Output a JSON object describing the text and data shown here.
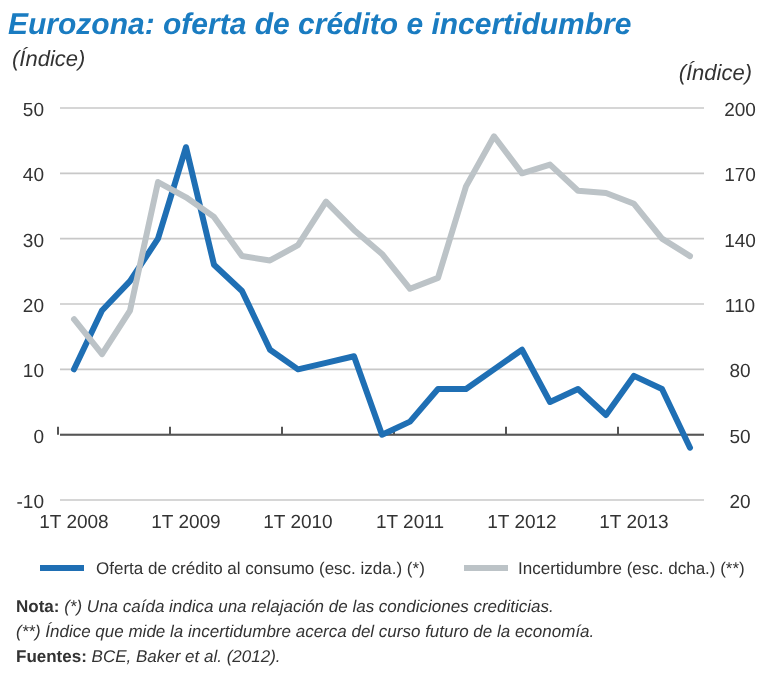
{
  "chart_data": {
    "type": "line",
    "title": "Eurozona: oferta de crédito e incertidumbre",
    "ylabel": "(Índice)",
    "y2label": "(Índice)",
    "categories": [
      "1T 2008",
      null,
      null,
      null,
      "1T 2009",
      null,
      null,
      null,
      "1T 2010",
      null,
      null,
      null,
      "1T 2011",
      null,
      null,
      null,
      "1T 2012",
      null,
      null,
      null,
      "1T 2013",
      null,
      null
    ],
    "ylim": [
      -10,
      50
    ],
    "yticks": [
      -10,
      0,
      10,
      20,
      30,
      40,
      50
    ],
    "y2lim": [
      20,
      200
    ],
    "y2ticks": [
      20,
      50,
      80,
      110,
      140,
      170,
      200
    ],
    "grid": "y",
    "legend": "bottom",
    "line_style": "solid",
    "marker": "none",
    "series": [
      {
        "name": "Oferta de crédito al consumo (esc. izda.) (*)",
        "color": "#1f6fb4",
        "values": [
          10,
          19,
          23.5,
          30,
          44,
          26,
          22,
          13,
          10,
          11,
          12,
          0,
          2,
          7,
          7,
          10,
          13,
          5,
          7,
          3,
          9,
          7,
          -2
        ]
      },
      {
        "name": "Incertidumbre (esc. dcha.) (**)",
        "color": "#bcc3c7",
        "axis": "y2",
        "values": [
          103,
          87,
          107,
          166,
          159,
          150,
          132,
          130,
          137,
          157,
          144,
          133,
          117,
          122,
          164,
          187,
          170,
          174,
          162,
          161,
          156,
          140,
          132
        ]
      }
    ],
    "annotations": [
      "Nota: (*) Una caída indica una relajación de las condiciones crediticias.",
      "(**) Índice que mide la incertidumbre acerca del curso futuro de la economía.",
      "Fuentes: BCE, Baker et al. (2012)."
    ]
  }
}
